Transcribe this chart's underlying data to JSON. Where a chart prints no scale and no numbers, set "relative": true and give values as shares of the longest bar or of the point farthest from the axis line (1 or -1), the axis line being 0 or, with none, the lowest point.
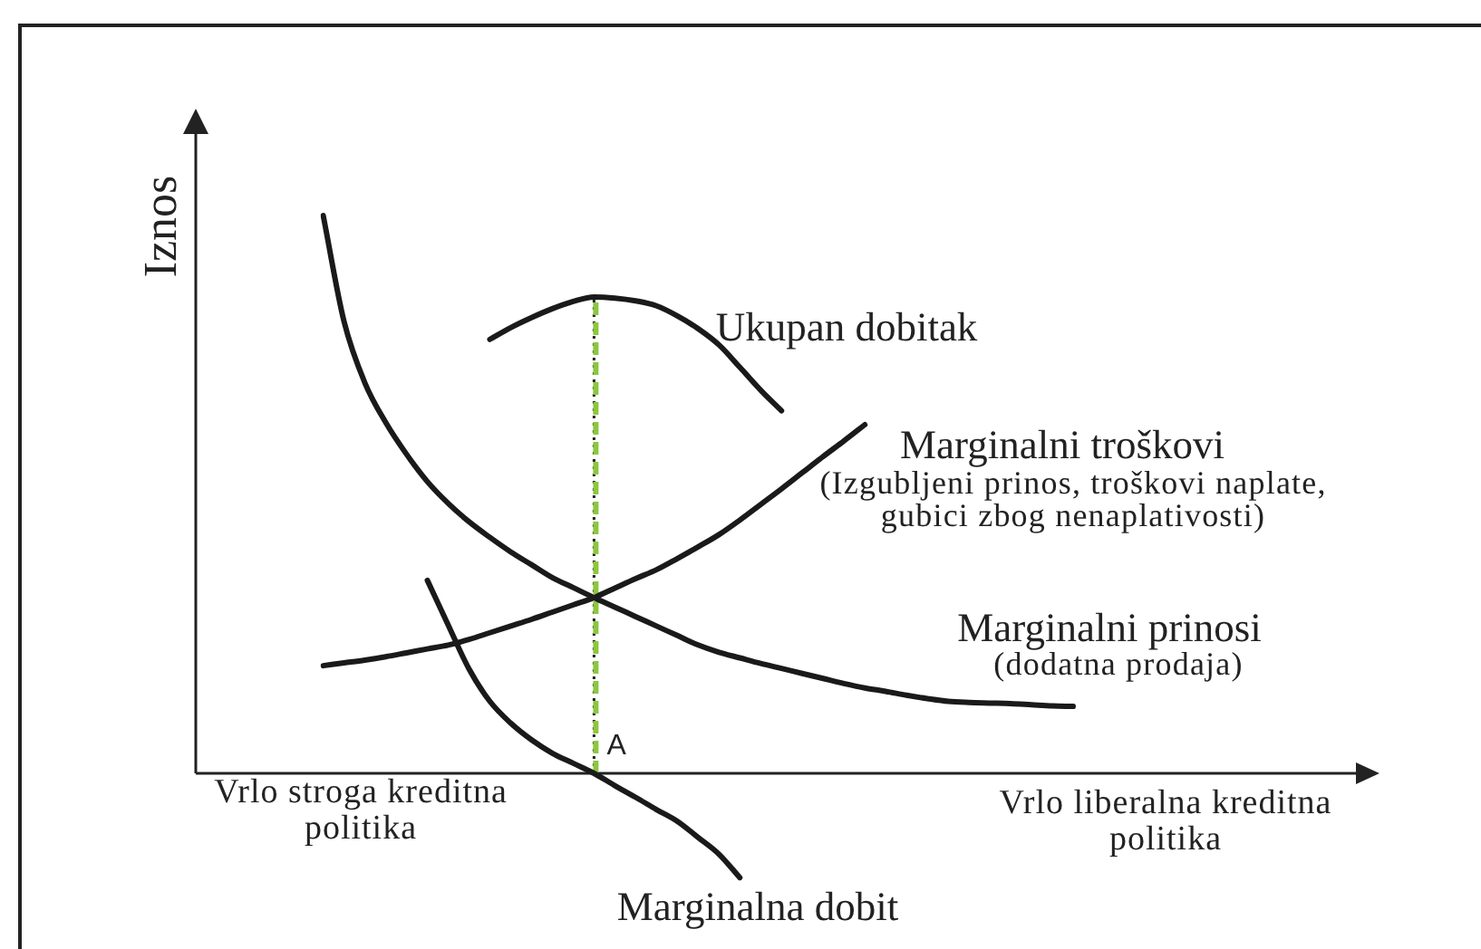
{
  "chart_data": {
    "type": "line",
    "ylabel": "Iznos",
    "relative": true,
    "tick_labels": false,
    "categories": [
      null,
      null,
      null,
      null,
      null,
      null,
      null,
      null,
      null,
      null,
      null,
      null,
      null,
      null,
      null,
      null,
      null,
      null,
      null,
      null,
      null,
      null,
      null,
      null,
      null,
      null,
      null,
      null,
      null,
      null,
      null,
      null,
      null,
      null,
      null,
      null,
      null
    ],
    "series": [
      {
        "name": "Ukupan dobitak",
        "color": "#1a1a1a",
        "values": [
          null,
          null,
          null,
          null,
          null,
          null,
          null,
          null,
          0.778,
          0.799,
          0.817,
          0.833,
          0.846,
          0.854,
          0.852,
          0.847,
          0.838,
          0.82,
          0.797,
          0.768,
          0.728,
          0.687,
          0.65,
          null,
          null,
          null,
          null,
          null,
          null,
          null,
          null,
          null,
          null,
          null,
          null,
          null,
          null
        ]
      },
      {
        "name": "Marginalni troškovi",
        "color": "#1a1a1a",
        "values": [
          0.193,
          0.198,
          0.203,
          0.209,
          0.216,
          0.223,
          0.23,
          0.24,
          0.252,
          0.264,
          0.276,
          0.289,
          0.302,
          0.315,
          0.332,
          0.349,
          0.365,
          0.385,
          0.406,
          0.428,
          0.454,
          0.482,
          0.51,
          0.539,
          0.568,
          0.596,
          0.625,
          null,
          null,
          null,
          null,
          null,
          null,
          null,
          null,
          null,
          null
        ]
      },
      {
        "name": "Marginalni prinosi",
        "color": "#1a1a1a",
        "values": [
          1,
          0.81,
          0.7,
          0.629,
          0.572,
          0.523,
          0.484,
          0.451,
          0.423,
          0.397,
          0.374,
          0.351,
          0.333,
          0.315,
          0.298,
          0.281,
          0.264,
          0.247,
          0.23,
          0.217,
          0.207,
          0.197,
          0.188,
          0.179,
          0.17,
          0.161,
          0.153,
          0.147,
          0.14,
          0.134,
          0.129,
          0.127,
          0.126,
          0.125,
          0.123,
          0.121,
          0.12
        ]
      },
      {
        "name": "Marginalna dobit",
        "color": "#1a1a1a",
        "values": [
          null,
          null,
          null,
          null,
          null,
          0.346,
          0.266,
          0.187,
          0.129,
          0.09,
          0.06,
          0.036,
          0.018,
          0,
          -0.022,
          -0.043,
          -0.065,
          -0.086,
          -0.115,
          -0.145,
          -0.187,
          null,
          null,
          null,
          null,
          null,
          null,
          null,
          null,
          null,
          null,
          null,
          null,
          null,
          null,
          null,
          null
        ]
      }
    ],
    "annotations": [
      "(Izgubljeni prinos, troškovi naplate, gubici zbog nenaplativosti)",
      "(dodatna prodaja)",
      "Vrlo stroga kreditna politika",
      "Vrlo liberalna kreditna politika",
      "A"
    ]
  }
}
